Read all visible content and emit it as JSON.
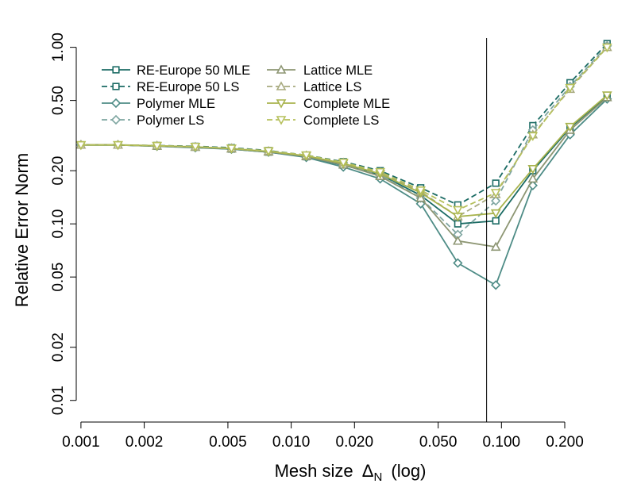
{
  "chart_data": {
    "type": "line",
    "xlabel": "Mesh size",
    "xlabel_symbol": "Δ",
    "xlabel_subscript": "N",
    "xlabel_suffix": "(log)",
    "ylabel": "Relative Error Norm",
    "xscale": "log",
    "yscale": "log",
    "xlim": [
      0.00095,
      0.34
    ],
    "ylim": [
      0.0089,
      1.2
    ],
    "xticks": [
      0.001,
      0.002,
      0.005,
      0.01,
      0.02,
      0.05,
      0.1,
      0.2
    ],
    "xtick_labels": [
      "0.001",
      "0.002",
      "0.005",
      "0.010",
      "0.020",
      "0.050",
      "0.100",
      "0.200"
    ],
    "yticks": [
      0.01,
      0.02,
      0.05,
      0.1,
      0.2,
      0.5,
      1.0
    ],
    "ytick_labels": [
      "0.01",
      "0.02",
      "0.05",
      "0.10",
      "0.20",
      "0.50",
      "1.00"
    ],
    "vline_x": 0.085,
    "legend_position": "top-left",
    "x": [
      0.001,
      0.0015,
      0.0023,
      0.0035,
      0.0052,
      0.0078,
      0.0118,
      0.0177,
      0.0265,
      0.0413,
      0.062,
      0.094,
      0.141,
      0.212,
      0.318
    ],
    "series": [
      {
        "name": "RE-Europe 50 MLE",
        "color": "#1b6b64",
        "dash": false,
        "marker": "square",
        "values": [
          0.28,
          0.28,
          0.275,
          0.272,
          0.265,
          0.255,
          0.24,
          0.215,
          0.19,
          0.145,
          0.1,
          0.104,
          0.2,
          0.35,
          0.53
        ]
      },
      {
        "name": "RE-Europe 50 LS",
        "color": "#1b6b64",
        "dash": true,
        "marker": "square",
        "values": [
          0.28,
          0.28,
          0.278,
          0.275,
          0.27,
          0.26,
          0.245,
          0.225,
          0.2,
          0.16,
          0.128,
          0.17,
          0.36,
          0.63,
          1.05
        ]
      },
      {
        "name": "Polymer MLE",
        "color": "#4e8c86",
        "dash": false,
        "marker": "diamond",
        "values": [
          0.28,
          0.28,
          0.275,
          0.27,
          0.265,
          0.255,
          0.238,
          0.21,
          0.18,
          0.13,
          0.06,
          0.045,
          0.165,
          0.32,
          0.51
        ]
      },
      {
        "name": "Polymer LS",
        "color": "#7fa6a1",
        "dash": true,
        "marker": "diamond",
        "values": [
          0.28,
          0.28,
          0.276,
          0.272,
          0.267,
          0.257,
          0.242,
          0.218,
          0.19,
          0.14,
          0.087,
          0.135,
          0.34,
          0.6,
          1.02
        ]
      },
      {
        "name": "Lattice MLE",
        "color": "#8d9673",
        "dash": false,
        "marker": "triangle-up",
        "values": [
          0.28,
          0.28,
          0.276,
          0.272,
          0.266,
          0.256,
          0.241,
          0.216,
          0.186,
          0.14,
          0.08,
          0.074,
          0.18,
          0.34,
          0.52
        ]
      },
      {
        "name": "Lattice LS",
        "color": "#a8aa7f",
        "dash": true,
        "marker": "triangle-up",
        "values": [
          0.28,
          0.28,
          0.277,
          0.273,
          0.268,
          0.258,
          0.244,
          0.222,
          0.195,
          0.152,
          0.11,
          0.147,
          0.32,
          0.58,
          1.0
        ]
      },
      {
        "name": "Complete MLE",
        "color": "#a8b34d",
        "dash": false,
        "marker": "triangle-down",
        "values": [
          0.28,
          0.28,
          0.277,
          0.273,
          0.267,
          0.257,
          0.243,
          0.22,
          0.192,
          0.15,
          0.11,
          0.115,
          0.205,
          0.355,
          0.535
        ]
      },
      {
        "name": "Complete LS",
        "color": "#b6c05c",
        "dash": true,
        "marker": "triangle-down",
        "values": [
          0.28,
          0.28,
          0.277,
          0.274,
          0.268,
          0.259,
          0.245,
          0.223,
          0.197,
          0.155,
          0.12,
          0.15,
          0.315,
          0.59,
          1.0
        ]
      }
    ]
  }
}
